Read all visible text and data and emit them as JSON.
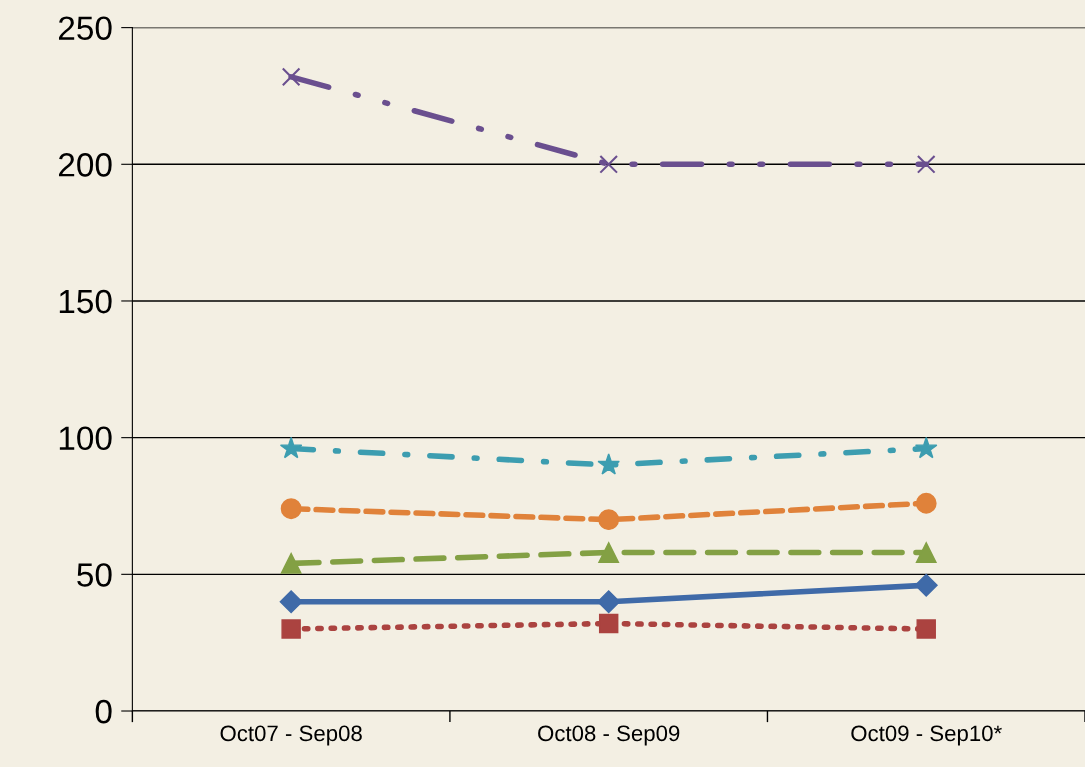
{
  "chart_data": {
    "type": "line",
    "categories": [
      "Oct07 - Sep08",
      "Oct08 - Sep09",
      "Oct09 - Sep10*"
    ],
    "series": [
      {
        "color": "#6a4f8f",
        "values": [
          232,
          200,
          200
        ],
        "marker": "cross",
        "line_style": "dashdotdot"
      },
      {
        "color": "#3c9db0",
        "values": [
          96,
          90,
          96
        ],
        "marker": "star",
        "line_style": "dashdot"
      },
      {
        "color": "#e0823a",
        "values": [
          74,
          70,
          76
        ],
        "marker": "circle",
        "line_style": "dashed"
      },
      {
        "color": "#83a044",
        "values": [
          54,
          58,
          58
        ],
        "marker": "triangle",
        "line_style": "longdashed"
      },
      {
        "color": "#3f6aa8",
        "values": [
          40,
          40,
          46
        ],
        "marker": "diamond",
        "line_style": "solid"
      },
      {
        "color": "#ab4340",
        "values": [
          30,
          32,
          30
        ],
        "marker": "square",
        "line_style": "dotted"
      }
    ],
    "ylim": [
      0,
      250
    ],
    "yticks": [
      0,
      50,
      100,
      150,
      200,
      250
    ],
    "grid": "y"
  }
}
